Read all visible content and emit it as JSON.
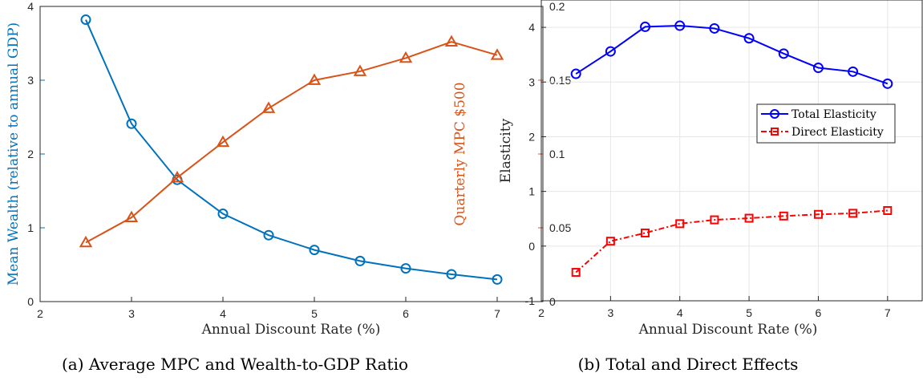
{
  "chart_data": [
    {
      "type": "line",
      "caption": "(a) Average MPC and Wealth-to-GDP Ratio",
      "x": [
        2.5,
        3,
        3.5,
        4,
        4.5,
        5,
        5.5,
        6,
        6.5,
        7
      ],
      "xlabel": "Annual Discount Rate (%)",
      "xlim": [
        2,
        7.5
      ],
      "xticks": [
        "2",
        "3",
        "4",
        "5",
        "6",
        "7"
      ],
      "grid": false,
      "series": [
        {
          "name": "Mean Wealth (relative to annual GDP)",
          "axis": "left",
          "marker": "circle",
          "color": "#0072BD",
          "values": [
            3.82,
            2.41,
            1.65,
            1.19,
            0.9,
            0.7,
            0.55,
            0.45,
            0.37,
            0.3
          ]
        },
        {
          "name": "Quarterly MPC $500",
          "axis": "right",
          "marker": "triangle",
          "color": "#D95319",
          "values": [
            0.04,
            0.057,
            0.084,
            0.108,
            0.131,
            0.15,
            0.156,
            0.165,
            0.176,
            0.167
          ]
        }
      ],
      "ylabel_left": "Mean Wealth (relative to annual GDP)",
      "ylim_left": [
        0,
        4
      ],
      "yticks_left": [
        "0",
        "1",
        "2",
        "3",
        "4"
      ],
      "ylabel_right": "Quarterly MPC $500",
      "ylim_right": [
        0,
        0.2
      ],
      "yticks_right": [
        "0",
        "0.05",
        "0.1",
        "0.15",
        "0.2"
      ]
    },
    {
      "type": "line",
      "caption": "(b) Total and Direct Effects",
      "x": [
        2.5,
        3,
        3.5,
        4,
        4.5,
        5,
        5.5,
        6,
        6.5,
        7
      ],
      "xlabel": "Annual Discount Rate (%)",
      "xlim": [
        2,
        7.5
      ],
      "xticks": [
        "2",
        "3",
        "4",
        "5",
        "6",
        "7"
      ],
      "ylabel": "Elasticity",
      "ylim": [
        -1,
        4.5
      ],
      "yticks": [
        "-1",
        "0",
        "1",
        "2",
        "3",
        "4"
      ],
      "grid": true,
      "legend_position": "right",
      "series": [
        {
          "name": "Total Elasticity",
          "marker": "circle",
          "line_style": "solid",
          "color": "#0000FF",
          "values": [
            3.15,
            3.56,
            4.01,
            4.03,
            3.98,
            3.8,
            3.52,
            3.26,
            3.19,
            2.97
          ]
        },
        {
          "name": "Direct Elasticity",
          "marker": "square",
          "line_style": "dash-dot",
          "color": "#FF0000",
          "values": [
            -0.48,
            0.09,
            0.24,
            0.41,
            0.48,
            0.51,
            0.55,
            0.58,
            0.6,
            0.65
          ]
        }
      ]
    }
  ]
}
